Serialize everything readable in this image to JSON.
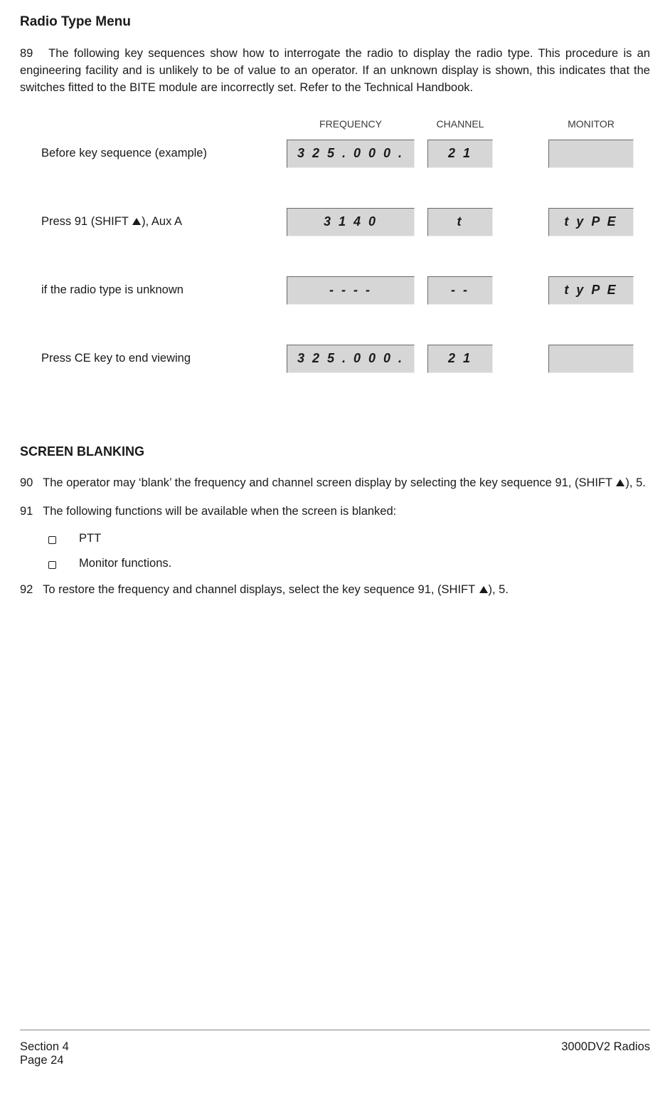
{
  "page": {
    "title1": "Radio Type Menu",
    "para89_num": "89",
    "para89_text": "The following key sequences show how to interrogate the radio to display the radio type. This procedure is an engineering facility and is unlikely to be of value to an operator. If an unknown display is shown, this indicates that the switches fitted to the BITE module are incorrectly set. Refer to the Technical Handbook.",
    "heading2": "SCREEN BLANKING",
    "para90_num": "90",
    "para90_pre": "The operator may ‘blank’ the frequency and channel screen display by selecting the key sequence 91, (SHIFT ",
    "para90_post": "), 5.",
    "para91_num": "91",
    "para91_text": "The following functions will be available when the screen is blanked:",
    "para92_num": "92",
    "para92_pre": "To restore the frequency and channel displays, select the key sequence 91, (SHIFT ",
    "para92_post": "), 5."
  },
  "headers": {
    "frequency": "FREQUENCY",
    "channel": "CHANNEL",
    "monitor": "MONITOR"
  },
  "rows": [
    {
      "label_pre": "Before key sequence (example)",
      "has_tri": false,
      "label_post": "",
      "frequency": "3 2 5 . 0 0 0 .",
      "channel": "2 1",
      "monitor": ""
    },
    {
      "label_pre": "Press 91 (SHIFT ",
      "has_tri": true,
      "label_post": "), Aux A",
      "frequency": "3 1 4 0",
      "channel": "t",
      "monitor": "t y P E"
    },
    {
      "label_pre": "if the radio type is unknown",
      "has_tri": false,
      "label_post": "",
      "frequency": "- - - -",
      "channel": "- -",
      "monitor": "t y P E"
    },
    {
      "label_pre": "Press CE key to end viewing",
      "has_tri": false,
      "label_post": "",
      "frequency": "3 2 5 . 0 0 0 .",
      "channel": "2 1",
      "monitor": ""
    }
  ],
  "list": {
    "items": [
      "PTT",
      "Monitor functions."
    ]
  },
  "footer": {
    "section": "Section 4",
    "page": "Page 24",
    "right": "3000DV2 Radios"
  },
  "style": {
    "disp_bg": "#d6d6d6",
    "text_color": "#1a1a1a"
  }
}
